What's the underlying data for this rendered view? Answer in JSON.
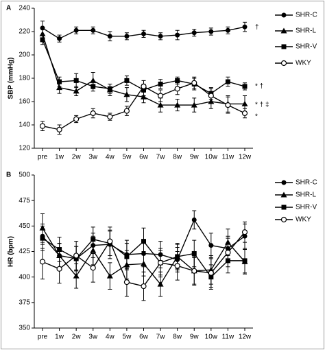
{
  "chart_data": [
    {
      "type": "line",
      "panel_label": "A",
      "y_label": "SBP (mmHg)",
      "categories": [
        "pre",
        "1w",
        "2w",
        "3w",
        "4w",
        "5w",
        "6w",
        "7w",
        "8w",
        "9w",
        "10w",
        "11w",
        "12w"
      ],
      "ylim": [
        120,
        240
      ],
      "yticks": [
        120,
        140,
        160,
        180,
        200,
        220,
        240
      ],
      "series": [
        {
          "name": "SHR-C",
          "color": "#000000",
          "marker": "circle-filled",
          "values": [
            223,
            214,
            221,
            221,
            216,
            216,
            218,
            216,
            217,
            219,
            220,
            221,
            224
          ],
          "errors": [
            6,
            3,
            3,
            3,
            4,
            3,
            3,
            3,
            4,
            3,
            3,
            3,
            4
          ]
        },
        {
          "name": "SHR-L",
          "color": "#000000",
          "marker": "triangle",
          "values": [
            218,
            172,
            169,
            178,
            170,
            166,
            164,
            157,
            157,
            157,
            160,
            158,
            158
          ],
          "errors": [
            5,
            5,
            4,
            7,
            5,
            6,
            5,
            6,
            5,
            6,
            6,
            7,
            7
          ]
        },
        {
          "name": "SHR-V",
          "color": "#000000",
          "marker": "square",
          "values": [
            213,
            177,
            178,
            173,
            171,
            178,
            170,
            175,
            178,
            175,
            167,
            177,
            173
          ],
          "errors": [
            4,
            4,
            6,
            4,
            4,
            4,
            5,
            4,
            3,
            5,
            5,
            4,
            3
          ]
        },
        {
          "name": "WKY",
          "color": "#000000",
          "marker": "circle-open",
          "values": [
            139,
            136,
            145,
            150,
            147,
            152,
            173,
            165,
            171,
            176,
            165,
            157,
            150
          ],
          "errors": [
            4,
            4,
            3,
            4,
            3,
            4,
            5,
            5,
            5,
            5,
            6,
            7,
            4
          ]
        }
      ],
      "annotations": [
        "†",
        "* †",
        "* † ‡",
        "*"
      ]
    },
    {
      "type": "line",
      "panel_label": "B",
      "y_label": "HR (bpm)",
      "categories": [
        "pre",
        "1w",
        "2w",
        "3w",
        "4w",
        "5w",
        "6w",
        "7w",
        "8w",
        "9w",
        "10w",
        "11w",
        "12w"
      ],
      "ylim": [
        350,
        500
      ],
      "yticks": [
        350,
        375,
        400,
        425,
        450,
        475,
        500
      ],
      "series": [
        {
          "name": "SHR-C",
          "color": "#000000",
          "marker": "circle-filled",
          "values": [
            440,
            421,
            418,
            431,
            432,
            422,
            423,
            422,
            417,
            456,
            431,
            428,
            440
          ],
          "errors": [
            12,
            12,
            12,
            12,
            14,
            14,
            13,
            13,
            12,
            9,
            12,
            12,
            12
          ]
        },
        {
          "name": "SHR-L",
          "color": "#000000",
          "marker": "triangle",
          "values": [
            448,
            421,
            401,
            426,
            401,
            412,
            413,
            393,
            420,
            406,
            407,
            434,
            415
          ],
          "errors": [
            14,
            12,
            12,
            14,
            13,
            14,
            12,
            12,
            13,
            13,
            14,
            13,
            12
          ]
        },
        {
          "name": "SHR-V",
          "color": "#000000",
          "marker": "square",
          "values": [
            438,
            427,
            418,
            437,
            433,
            420,
            435,
            414,
            420,
            423,
            400,
            416,
            416
          ],
          "errors": [
            12,
            12,
            12,
            12,
            12,
            13,
            13,
            12,
            12,
            13,
            12,
            12,
            12
          ]
        },
        {
          "name": "WKY",
          "color": "#000000",
          "marker": "circle-open",
          "values": [
            415,
            408,
            421,
            409,
            435,
            395,
            391,
            414,
            411,
            406,
            404,
            424,
            444
          ],
          "errors": [
            17,
            14,
            14,
            14,
            14,
            14,
            14,
            14,
            14,
            14,
            14,
            14,
            10
          ]
        }
      ]
    }
  ]
}
